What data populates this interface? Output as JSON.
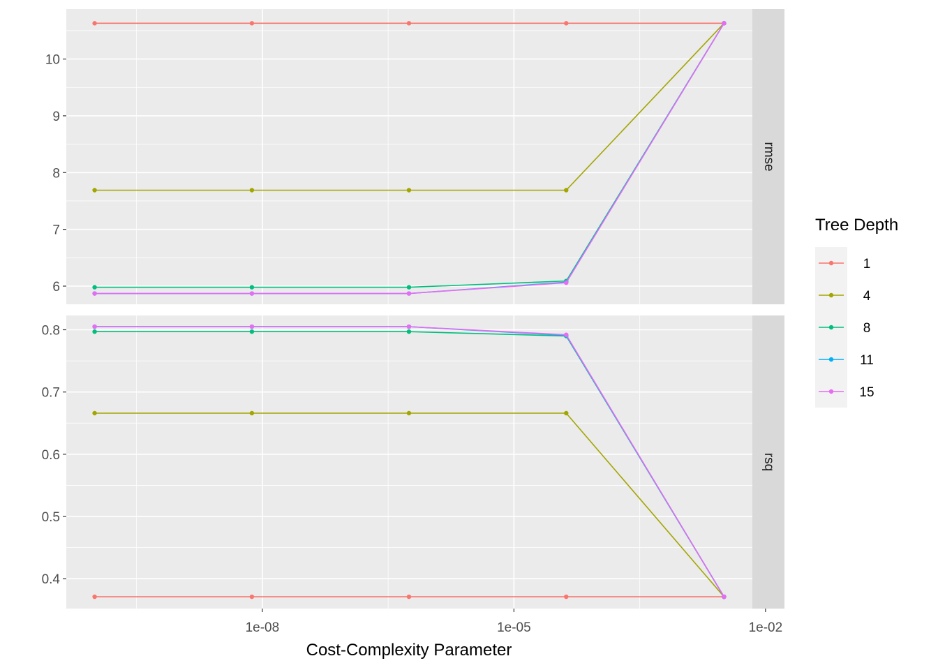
{
  "chart_data": {
    "type": "line",
    "xlabel": "Cost-Complexity Parameter",
    "x_scale": "log10",
    "x": [
      1e-10,
      7.5e-09,
      5.6e-07,
      4.2e-05,
      0.0032
    ],
    "x_ticks": [
      1e-08,
      1e-05,
      0.01
    ],
    "x_tick_labels": [
      "1e-08",
      "1e-05",
      "1e-02"
    ],
    "legend": {
      "title": "Tree Depth",
      "position": "right"
    },
    "grid": true,
    "panels": [
      {
        "strip": "rmse",
        "ylim": [
          5.68,
          10.88
        ],
        "y_ticks": [
          6,
          7,
          8,
          9,
          10
        ],
        "y_tick_labels": [
          "6",
          "7",
          "8",
          "9",
          "10"
        ],
        "series": [
          {
            "name": "1",
            "color": "#F8766D",
            "values": [
              10.63,
              10.63,
              10.63,
              10.63,
              10.63
            ]
          },
          {
            "name": "4",
            "color": "#A3A500",
            "values": [
              7.69,
              7.69,
              7.69,
              7.69,
              10.63
            ]
          },
          {
            "name": "8",
            "color": "#00BF7D",
            "values": [
              5.98,
              5.98,
              5.98,
              6.09,
              10.63
            ]
          },
          {
            "name": "11",
            "color": "#00B0F6",
            "values": [
              5.87,
              5.87,
              5.87,
              6.07,
              10.63
            ]
          },
          {
            "name": "15",
            "color": "#E76BF3",
            "values": [
              5.87,
              5.87,
              5.87,
              6.06,
              10.63
            ]
          }
        ]
      },
      {
        "strip": "rsq",
        "ylim": [
          0.352,
          0.823
        ],
        "y_ticks": [
          0.4,
          0.5,
          0.6,
          0.7,
          0.8
        ],
        "y_tick_labels": [
          "0.4",
          "0.5",
          "0.6",
          "0.7",
          "0.8"
        ],
        "series": [
          {
            "name": "1",
            "color": "#F8766D",
            "values": [
              0.371,
              0.371,
              0.371,
              0.371,
              0.371
            ]
          },
          {
            "name": "4",
            "color": "#A3A500",
            "values": [
              0.666,
              0.666,
              0.666,
              0.666,
              0.371
            ]
          },
          {
            "name": "8",
            "color": "#00BF7D",
            "values": [
              0.797,
              0.797,
              0.797,
              0.79,
              0.371
            ]
          },
          {
            "name": "11",
            "color": "#00B0F6",
            "values": [
              0.805,
              0.805,
              0.805,
              0.791,
              0.371
            ]
          },
          {
            "name": "15",
            "color": "#E76BF3",
            "values": [
              0.805,
              0.805,
              0.805,
              0.792,
              0.371
            ]
          }
        ]
      }
    ]
  }
}
